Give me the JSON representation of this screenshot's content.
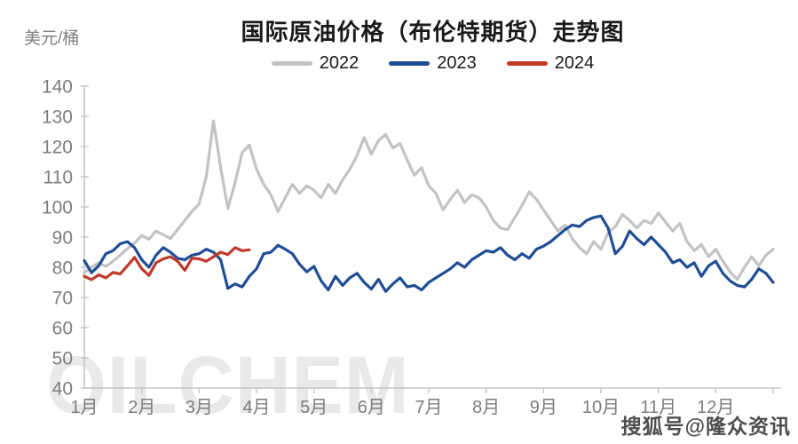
{
  "page": {
    "watermark_large": "OILCHEM",
    "watermark_small": "搜狐号@隆众资讯"
  },
  "chart_data": {
    "type": "line",
    "title": "国际原油价格（布伦特期货）走势图",
    "ylabel": "美元/桶",
    "xlabel": "",
    "ylim": [
      40,
      140
    ],
    "ytick_step": 10,
    "x_tick_labels": [
      "1月",
      "2月",
      "3月",
      "4月",
      "5月",
      "6月",
      "7月",
      "8月",
      "9月",
      "10月",
      "11月",
      "12月"
    ],
    "grid": false,
    "legend_position": "top",
    "axis_color": "#c6c6c6",
    "tick_label_color": "#7d7d7d",
    "series": [
      {
        "name": "2022",
        "color": "#c3c3c3",
        "x_start_month": 0,
        "x_step_month": 0.125,
        "unit": "USD/barrel",
        "values": [
          78.2,
          80.0,
          81.5,
          80.3,
          82.0,
          84.0,
          86.2,
          88.0,
          90.5,
          89.3,
          92.0,
          90.8,
          89.5,
          92.5,
          95.5,
          98.5,
          101.0,
          110.0,
          128.5,
          113.0,
          99.5,
          108.0,
          118.0,
          120.5,
          112.5,
          107.5,
          104.0,
          98.5,
          103.0,
          107.5,
          104.5,
          107.0,
          105.5,
          103.0,
          107.5,
          104.5,
          109.0,
          112.5,
          117.0,
          123.0,
          117.5,
          122.0,
          124.0,
          119.5,
          121.0,
          115.5,
          110.5,
          113.0,
          107.0,
          104.5,
          99.0,
          102.5,
          105.5,
          101.5,
          104.0,
          103.0,
          100.0,
          95.5,
          93.0,
          92.5,
          96.5,
          100.5,
          105.0,
          102.5,
          99.0,
          95.5,
          92.0,
          94.0,
          89.5,
          86.5,
          84.5,
          88.5,
          86.0,
          91.5,
          93.5,
          97.5,
          95.5,
          93.0,
          95.5,
          94.5,
          98.0,
          95.0,
          92.0,
          94.5,
          88.5,
          85.5,
          87.5,
          83.5,
          86.0,
          82.0,
          78.5,
          76.0,
          80.0,
          83.5,
          80.5,
          84.0,
          86.0
        ]
      },
      {
        "name": "2023",
        "color": "#1f4e96",
        "x_start_month": 0,
        "x_step_month": 0.125,
        "unit": "USD/barrel",
        "values": [
          82.2,
          78.2,
          80.5,
          84.5,
          85.5,
          87.8,
          88.5,
          86.5,
          82.5,
          80.0,
          84.0,
          86.5,
          85.0,
          83.0,
          82.5,
          84.0,
          84.5,
          86.0,
          85.0,
          82.5,
          73.0,
          74.5,
          73.5,
          77.0,
          79.5,
          84.5,
          85.0,
          87.3,
          86.0,
          84.5,
          81.0,
          78.5,
          80.3,
          75.5,
          72.5,
          77.0,
          74.0,
          76.5,
          78.0,
          75.0,
          72.8,
          76.0,
          72.0,
          74.5,
          76.5,
          73.5,
          74.0,
          72.5,
          75.0,
          76.5,
          78.0,
          79.5,
          81.5,
          80.0,
          82.5,
          84.0,
          85.5,
          85.0,
          86.5,
          84.0,
          82.5,
          84.5,
          83.0,
          86.0,
          87.0,
          88.5,
          90.5,
          92.5,
          94.0,
          93.5,
          95.5,
          96.5,
          97.0,
          93.0,
          84.5,
          87.0,
          92.0,
          89.5,
          87.5,
          90.0,
          87.5,
          85.0,
          81.5,
          82.5,
          80.0,
          81.5,
          77.0,
          80.5,
          82.0,
          78.0,
          75.5,
          74.0,
          73.5,
          76.0,
          79.5,
          78.0,
          75.0
        ]
      },
      {
        "name": "2024",
        "color": "#c0392b",
        "x_start_month": 0,
        "x_step_month": 0.125,
        "unit": "USD/barrel",
        "values": [
          77.0,
          75.9,
          77.5,
          76.5,
          78.3,
          77.8,
          80.5,
          83.3,
          79.5,
          77.3,
          81.5,
          82.8,
          83.5,
          82.0,
          79.0,
          83.0,
          82.8,
          82.0,
          83.5,
          85.0,
          84.2,
          86.5,
          85.5,
          85.8
        ]
      }
    ]
  }
}
